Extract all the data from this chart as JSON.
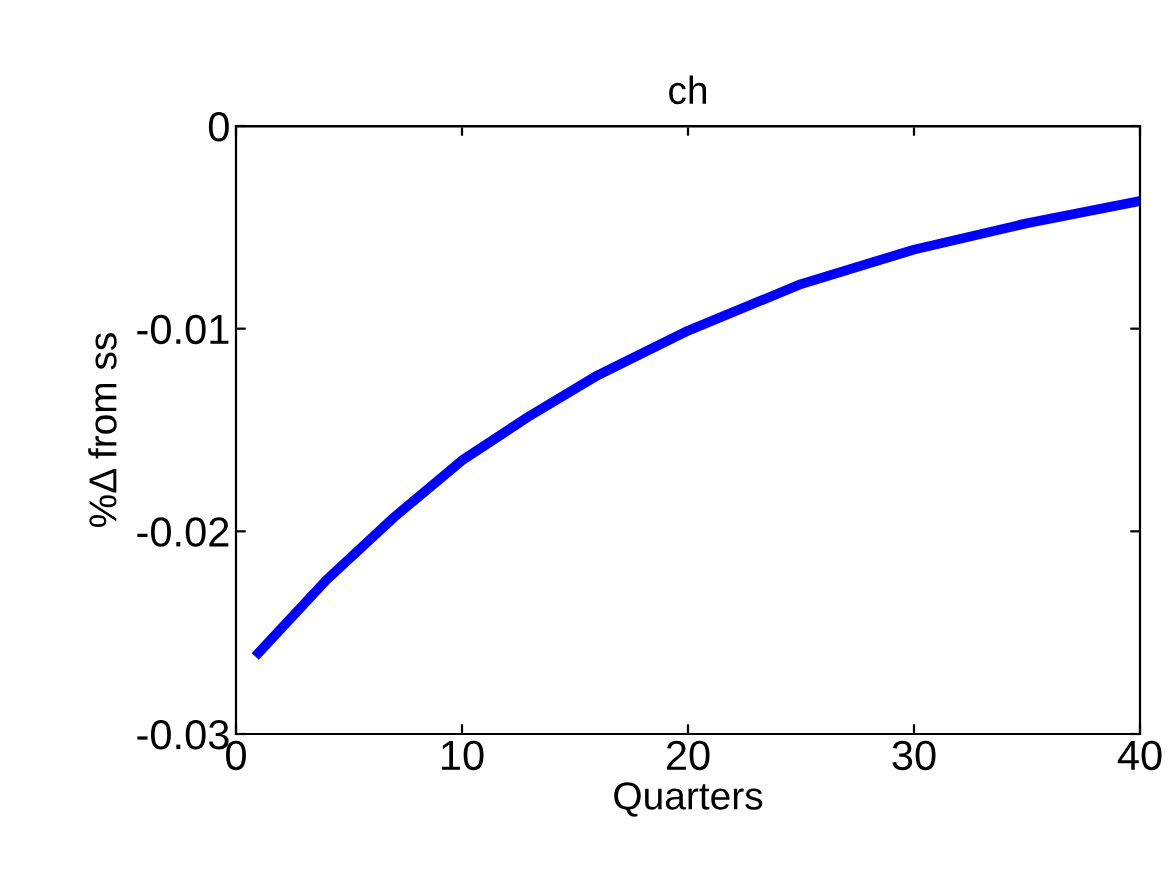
{
  "chart_data": {
    "type": "line",
    "title": "ch",
    "xlabel": "Quarters",
    "ylabel": "%Δ from ss",
    "x": [
      1,
      4,
      7,
      10,
      13,
      16,
      20,
      25,
      30,
      35,
      40
    ],
    "series": [
      {
        "color": "#0000ff",
        "values": [
          -0.026,
          -0.0224,
          -0.0193,
          -0.0165,
          -0.0143,
          -0.0123,
          -0.0101,
          -0.0078,
          -0.0061,
          -0.0048,
          -0.0037
        ]
      }
    ],
    "ref_lines": [
      {
        "axis": "y",
        "value": 0,
        "color": "#ff0000"
      }
    ],
    "xlim": [
      0,
      40
    ],
    "xticks": [
      0,
      10,
      20,
      30,
      40
    ],
    "ylim": [
      -0.03,
      0
    ],
    "yticks": [
      {
        "value": -0.03,
        "label": "-0.03"
      },
      {
        "value": -0.02,
        "label": "-0.02"
      },
      {
        "value": -0.01,
        "label": "-0.01"
      },
      0
    ],
    "grid": false,
    "legend": false,
    "line_style": "solid",
    "marker": "none"
  }
}
